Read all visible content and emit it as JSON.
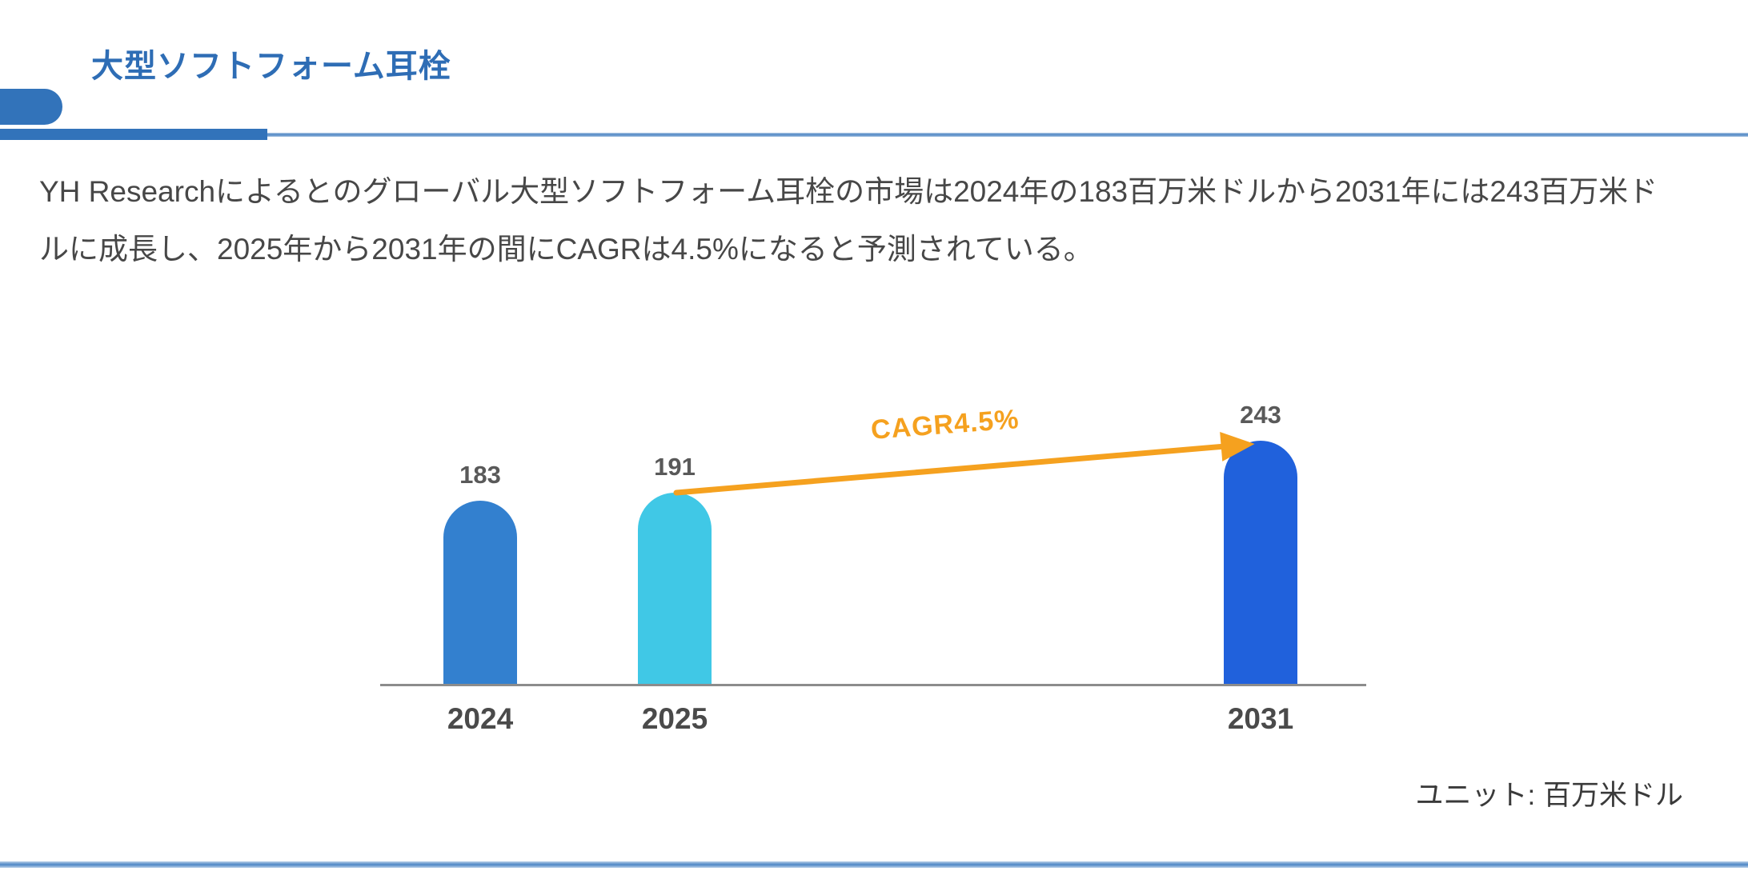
{
  "header": {
    "title": "大型ソフトフォーム耳栓"
  },
  "description": {
    "lines": [
      "YH Researchによるとのグローバル大型ソフトフォーム耳栓の市場は2024年の183百万米ドルから2031年には243百万米ド",
      "ルに成長し、2025年から2031年の間にCAGRは4.5%になると予測されている。"
    ]
  },
  "chart_data": {
    "type": "bar",
    "title": "",
    "xlabel": "",
    "ylabel": "",
    "categories": [
      "2024",
      "2025",
      "2031"
    ],
    "values": [
      183,
      191,
      243
    ],
    "value_labels": [
      "183",
      "191",
      "243"
    ],
    "bar_colors": [
      "#3380CF",
      "#40C8E6",
      "#2061DC"
    ],
    "annotation": "CAGR4.5%",
    "annotation_color": "#F5A11F",
    "unit_note": "ユニット: 百万米ドル",
    "ylim": [
      0,
      250
    ],
    "grid": false,
    "legend": false,
    "axis_color": "#8C8C8C"
  },
  "theme": {
    "title_blue": "#2E6DB5",
    "decoration_blue": "#3273BA",
    "divider_blue": "#4E87C6",
    "text_gray": "#474747",
    "label_gray": "#595959"
  }
}
